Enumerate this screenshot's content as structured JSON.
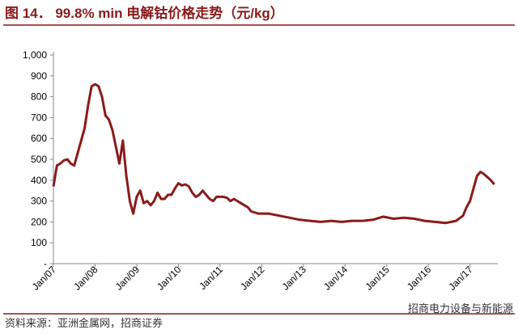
{
  "chart_data": {
    "type": "line",
    "title": "图 14．  99.8% min 电解钴价格走势（元/kg）",
    "source": "资料来源：亚洲金属网，招商证券",
    "watermark": "招商电力设备与新能源",
    "color": "#8b1a1a",
    "x": [
      "2007-01",
      "2007-02",
      "2007-03",
      "2007-04",
      "2007-05",
      "2007-06",
      "2007-07",
      "2007-08",
      "2007-09",
      "2007-10",
      "2007-11",
      "2007-12",
      "2008-01",
      "2008-02",
      "2008-03",
      "2008-04",
      "2008-05",
      "2008-06",
      "2008-07",
      "2008-08",
      "2008-09",
      "2008-10",
      "2008-11",
      "2008-12",
      "2009-01",
      "2009-02",
      "2009-03",
      "2009-04",
      "2009-05",
      "2009-06",
      "2009-07",
      "2009-08",
      "2009-09",
      "2009-10",
      "2009-11",
      "2009-12",
      "2010-01",
      "2010-02",
      "2010-03",
      "2010-04",
      "2010-05",
      "2010-06",
      "2010-07",
      "2010-08",
      "2010-09",
      "2010-10",
      "2010-11",
      "2010-12",
      "2011-01",
      "2011-02",
      "2011-03",
      "2011-04",
      "2011-05",
      "2011-06",
      "2011-07",
      "2011-08",
      "2011-09",
      "2011-10",
      "2011-12",
      "2012-03",
      "2012-06",
      "2012-09",
      "2012-12",
      "2013-03",
      "2013-06",
      "2013-09",
      "2013-12",
      "2014-03",
      "2014-06",
      "2014-09",
      "2014-12",
      "2015-03",
      "2015-06",
      "2015-09",
      "2015-12",
      "2016-03",
      "2016-06",
      "2016-09",
      "2016-11",
      "2016-12",
      "2017-01",
      "2017-02",
      "2017-03",
      "2017-04",
      "2017-05",
      "2017-06",
      "2017-07",
      "2017-08"
    ],
    "values": [
      370,
      470,
      480,
      495,
      500,
      480,
      470,
      530,
      590,
      650,
      760,
      850,
      860,
      850,
      800,
      710,
      690,
      640,
      560,
      480,
      590,
      420,
      300,
      240,
      320,
      350,
      290,
      300,
      280,
      300,
      340,
      310,
      310,
      330,
      330,
      360,
      385,
      375,
      380,
      370,
      340,
      320,
      330,
      350,
      330,
      310,
      300,
      320,
      320,
      320,
      315,
      300,
      310,
      300,
      290,
      280,
      270,
      250,
      240,
      240,
      230,
      220,
      210,
      205,
      200,
      205,
      200,
      205,
      205,
      210,
      225,
      215,
      220,
      215,
      205,
      200,
      195,
      205,
      230,
      270,
      300,
      360,
      420,
      440,
      430,
      415,
      400,
      380
    ],
    "xlim": [
      "2007-01",
      "2017-09"
    ],
    "xticks": [
      {
        "value": "2007-01",
        "label": "Jan/07"
      },
      {
        "value": "2008-01",
        "label": "Jan/08"
      },
      {
        "value": "2009-01",
        "label": "Jan/09"
      },
      {
        "value": "2010-01",
        "label": "Jan/10"
      },
      {
        "value": "2011-01",
        "label": "Jan/11"
      },
      {
        "value": "2012-01",
        "label": "Jan/12"
      },
      {
        "value": "2013-01",
        "label": "Jan/13"
      },
      {
        "value": "2014-01",
        "label": "Jan/14"
      },
      {
        "value": "2015-01",
        "label": "Jan/15"
      },
      {
        "value": "2016-01",
        "label": "Jan/16"
      },
      {
        "value": "2017-01",
        "label": "Jan/17"
      }
    ],
    "ylim": [
      0,
      1000
    ],
    "yticks": [
      {
        "value": 0,
        "label": "-"
      },
      100,
      200,
      300,
      400,
      500,
      600,
      700,
      800,
      900,
      {
        "value": 1000,
        "label": "1,000"
      }
    ]
  }
}
